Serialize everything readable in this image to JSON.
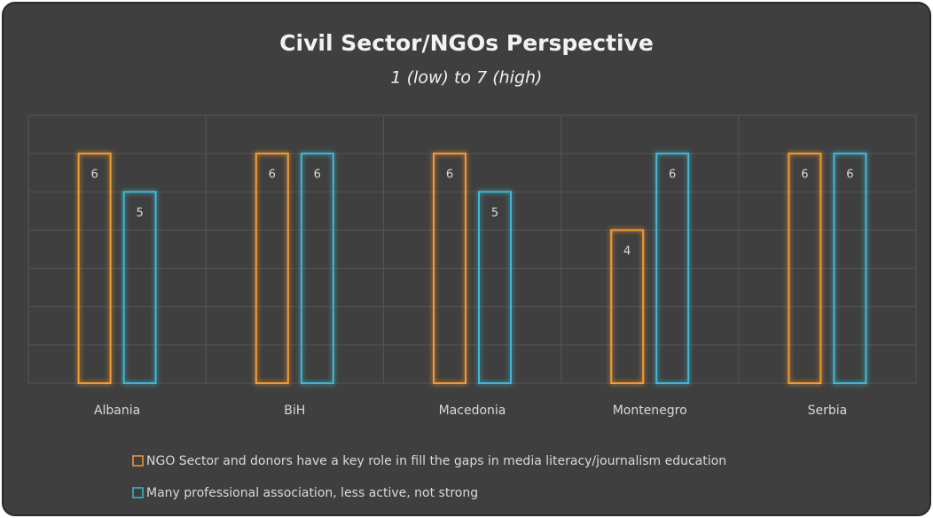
{
  "chart_data": {
    "type": "bar",
    "title": "Civil Sector/NGOs Perspective",
    "subtitle": "1 (low) to 7 (high)",
    "categories": [
      "Albania",
      "BiH",
      "Macedonia",
      "Montenegro",
      "Serbia"
    ],
    "series": [
      {
        "name": "NGO Sector and donors have a key role in fill the gaps in media literacy/journalism education",
        "color": "#f59a32",
        "values": [
          6,
          6,
          6,
          4,
          6
        ]
      },
      {
        "name": "Many professional association, less active, not strong",
        "color": "#3fb8d4",
        "values": [
          5,
          6,
          5,
          6,
          6
        ]
      }
    ],
    "ylim": [
      0,
      7
    ],
    "yticks": [
      0,
      1,
      2,
      3,
      4,
      5,
      6,
      7
    ],
    "grid": true
  }
}
